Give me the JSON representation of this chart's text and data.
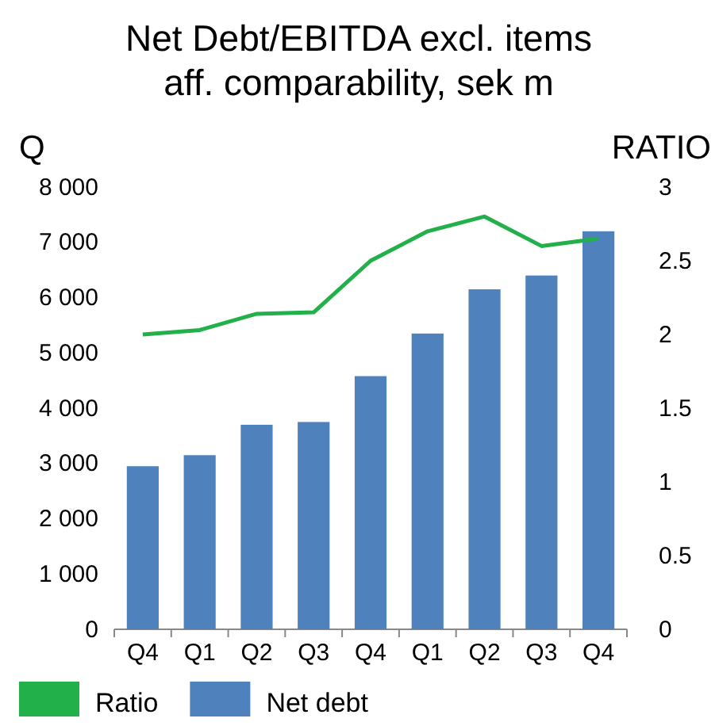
{
  "chart_data": {
    "type": "bar",
    "title": "Net Debt/EBITDA excl. items aff. comparability, sek m",
    "ylabel": "Q",
    "y2label": "RATIO",
    "categories": [
      "Q4",
      "Q1",
      "Q2",
      "Q3",
      "Q4",
      "Q1",
      "Q2",
      "Q3",
      "Q4"
    ],
    "series": [
      {
        "name": "Ratio",
        "type": "line",
        "axis": "y2",
        "color": "#22b04a",
        "values": [
          2.0,
          2.03,
          2.14,
          2.15,
          2.5,
          2.7,
          2.8,
          2.6,
          2.65
        ]
      },
      {
        "name": "Net debt",
        "color": "#4f81bd",
        "values": [
          2950,
          3150,
          3700,
          3750,
          4580,
          5350,
          6150,
          6400,
          7200
        ]
      }
    ],
    "ylim": [
      0,
      8000
    ],
    "yticks": [
      0,
      {
        "value": 1000,
        "label": "1 000"
      },
      {
        "value": 2000,
        "label": "2 000"
      },
      {
        "value": 3000,
        "label": "3 000"
      },
      {
        "value": 4000,
        "label": "4 000"
      },
      {
        "value": 5000,
        "label": "5 000"
      },
      {
        "value": 6000,
        "label": "6 000"
      },
      {
        "value": 7000,
        "label": "7 000"
      },
      {
        "value": 8000,
        "label": "8 000"
      }
    ],
    "y2lim": [
      0,
      3
    ],
    "y2ticks": [
      0,
      0.5,
      1,
      1.5,
      2,
      2.5,
      3
    ],
    "grid": false,
    "legend": "bottom left",
    "marker": "none",
    "line_style": "solid"
  }
}
